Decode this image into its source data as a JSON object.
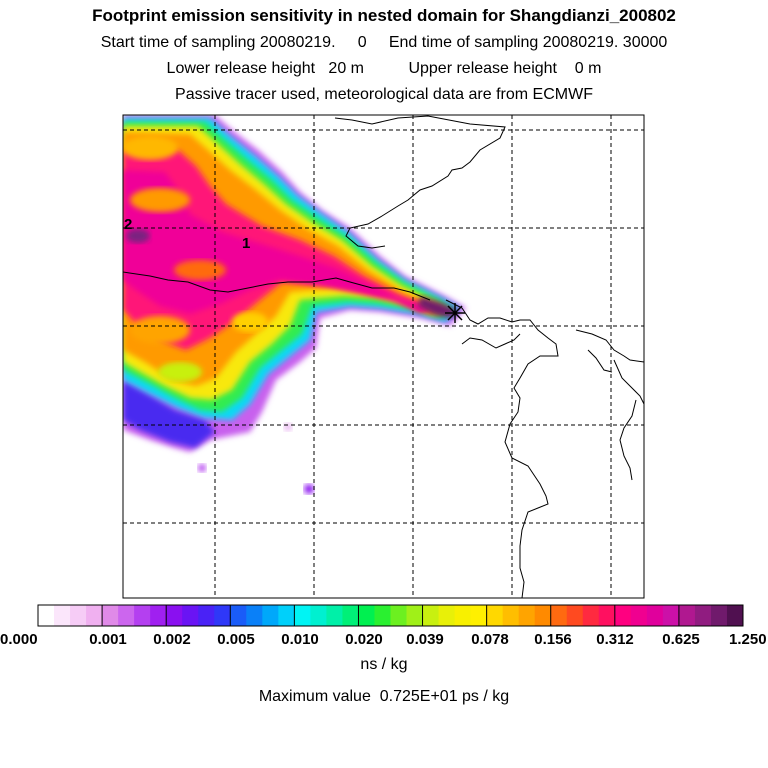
{
  "header": {
    "title": "Footprint emission sensitivity in nested domain for Shangdianzi_200802",
    "line2": "Start time of sampling 20080219.     0     End time of sampling 20080219. 30000",
    "line3": "Lower release height   20 m          Upper release height    0 m",
    "line4": "Passive tracer used, meteorological data are from ECMWF"
  },
  "map": {
    "markers": [
      {
        "label": "2"
      },
      {
        "label": "1"
      }
    ],
    "release_site_symbol": "cross-icon"
  },
  "colorbar": {
    "tick_labels": [
      "0.000",
      "0.001",
      "0.002",
      "0.005",
      "0.010",
      "0.020",
      "0.039",
      "0.078",
      "0.156",
      "0.312",
      "0.625",
      "1.250"
    ],
    "unit": "ns / kg",
    "colors": [
      [
        "#ffffff",
        "#fbe6fb",
        "#f6ccf6",
        "#f0b0f0"
      ],
      [
        "#e08ae8",
        "#cc66ee",
        "#b440f0",
        "#a020f0"
      ],
      [
        "#8a10f0",
        "#6a14f4",
        "#4a22f6",
        "#2f38f8"
      ],
      [
        "#1a5cf8",
        "#0a80f8",
        "#00a8fa",
        "#00d0fa"
      ],
      [
        "#00f4f4",
        "#00f0d0",
        "#00f0a8",
        "#00f078"
      ],
      [
        "#00f050",
        "#2af030",
        "#6cf020",
        "#a0f018"
      ],
      [
        "#c8f010",
        "#e8f008",
        "#f8f000",
        "#fff000"
      ],
      [
        "#ffd800",
        "#ffbe00",
        "#ffa400",
        "#ff8a00"
      ],
      [
        "#ff6a10",
        "#ff4a20",
        "#ff2a40",
        "#ff1060"
      ],
      [
        "#ff0080",
        "#f00090",
        "#e0009c",
        "#cc10a8"
      ],
      [
        "#b01890",
        "#901c80",
        "#701a6c",
        "#501050"
      ]
    ]
  },
  "footer": {
    "maximum_value": "Maximum value  0.725E+01 ps / kg"
  }
}
